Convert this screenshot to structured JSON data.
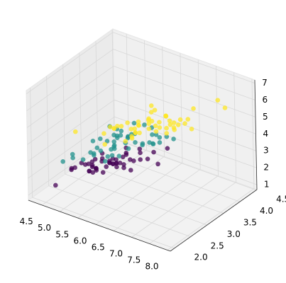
{
  "chart_data": {
    "type": "scatter3d",
    "xlim": [
      4.12,
      8.08
    ],
    "ylim": [
      1.88,
      4.52
    ],
    "zlim": [
      0.705,
      7.195
    ],
    "xticks": [
      {
        "value": 4.5,
        "label": "4.5"
      },
      {
        "value": 5.0,
        "label": "5.0"
      },
      {
        "value": 5.5,
        "label": "5.5"
      },
      {
        "value": 6.0,
        "label": "6.0"
      },
      {
        "value": 6.5,
        "label": "6.5"
      },
      {
        "value": 7.0,
        "label": "7.0"
      },
      {
        "value": 7.5,
        "label": "7.5"
      },
      {
        "value": 8.0,
        "label": "8.0"
      }
    ],
    "yticks": [
      {
        "value": 2.0,
        "label": "2.0"
      },
      {
        "value": 2.5,
        "label": "2.5"
      },
      {
        "value": 3.0,
        "label": "3.0"
      },
      {
        "value": 3.5,
        "label": "3.5"
      },
      {
        "value": 4.0,
        "label": "4.0"
      },
      {
        "value": 4.5,
        "label": "4.5"
      }
    ],
    "zticks": [
      1,
      2,
      3,
      4,
      5,
      6,
      7
    ],
    "grid": true,
    "series": [
      {
        "color": "#440154",
        "x": [
          5.1,
          4.9,
          4.7,
          4.6,
          5.0,
          5.4,
          4.6,
          5.0,
          4.4,
          4.9,
          5.4,
          4.8,
          4.8,
          4.3,
          5.8,
          5.7,
          5.4,
          5.1,
          5.7,
          5.1,
          5.4,
          5.1,
          4.6,
          5.1,
          4.8,
          5.0,
          5.0,
          5.2,
          5.2,
          4.7,
          4.8,
          5.4,
          5.2,
          5.5,
          4.9,
          5.0,
          5.5,
          4.9,
          4.4,
          5.1,
          5.0,
          4.5,
          4.4,
          5.0,
          5.1,
          4.8,
          5.1,
          4.6,
          5.3,
          5.0
        ],
        "y": [
          3.5,
          3.0,
          3.2,
          3.1,
          3.6,
          3.9,
          3.4,
          3.4,
          2.9,
          3.1,
          3.7,
          3.4,
          3.0,
          3.0,
          4.0,
          4.4,
          3.9,
          3.5,
          3.8,
          3.8,
          3.4,
          3.7,
          3.6,
          3.3,
          3.4,
          3.0,
          3.4,
          3.5,
          3.4,
          3.2,
          3.1,
          3.4,
          4.1,
          4.2,
          3.1,
          3.2,
          3.5,
          3.1,
          3.0,
          3.4,
          3.5,
          2.3,
          3.2,
          3.5,
          3.8,
          3.0,
          3.8,
          3.2,
          3.7,
          3.3
        ],
        "z": [
          1.4,
          1.4,
          1.3,
          1.5,
          1.4,
          1.7,
          1.4,
          1.5,
          1.4,
          1.5,
          1.5,
          1.6,
          1.4,
          1.1,
          1.2,
          1.5,
          1.3,
          1.4,
          1.7,
          1.5,
          1.7,
          1.5,
          1.0,
          1.7,
          1.9,
          1.6,
          1.6,
          1.5,
          1.4,
          1.6,
          1.6,
          1.5,
          1.5,
          1.4,
          1.5,
          1.2,
          1.3,
          1.5,
          1.3,
          1.5,
          1.3,
          1.3,
          1.3,
          1.6,
          1.9,
          1.4,
          1.6,
          1.4,
          1.5,
          1.4
        ]
      },
      {
        "color": "#21918c",
        "x": [
          7.0,
          6.4,
          6.9,
          5.5,
          6.5,
          5.7,
          6.3,
          4.9,
          6.6,
          5.2,
          5.0,
          5.9,
          6.0,
          6.1,
          5.6,
          6.7,
          5.6,
          5.8,
          6.2,
          5.6,
          5.9,
          6.1,
          6.3,
          6.1,
          6.4,
          6.6,
          6.8,
          6.7,
          6.0,
          5.7,
          5.5,
          5.5,
          5.8,
          6.0,
          5.4,
          6.0,
          6.7,
          6.3,
          5.6,
          5.5,
          5.5,
          6.1,
          5.8,
          5.0,
          5.6,
          5.7,
          5.7,
          6.2,
          5.1,
          5.7
        ],
        "y": [
          3.2,
          3.2,
          3.1,
          2.3,
          2.8,
          2.8,
          3.3,
          2.4,
          2.9,
          2.7,
          2.0,
          3.0,
          2.2,
          2.9,
          2.9,
          3.1,
          3.0,
          2.7,
          2.2,
          2.5,
          3.2,
          2.8,
          2.5,
          2.8,
          2.9,
          3.0,
          2.8,
          3.0,
          2.9,
          2.6,
          2.4,
          2.4,
          2.7,
          2.7,
          3.0,
          3.4,
          3.1,
          2.3,
          3.0,
          2.5,
          2.6,
          3.0,
          2.6,
          2.3,
          2.7,
          3.0,
          2.9,
          2.9,
          2.5,
          2.8
        ],
        "z": [
          4.7,
          4.5,
          4.9,
          4.0,
          4.6,
          4.5,
          4.7,
          3.3,
          4.6,
          3.9,
          3.5,
          4.2,
          4.0,
          4.7,
          3.6,
          4.4,
          4.5,
          4.1,
          4.5,
          3.9,
          4.8,
          4.0,
          4.9,
          4.7,
          4.3,
          4.4,
          4.8,
          5.0,
          4.5,
          3.5,
          3.8,
          3.7,
          3.9,
          5.1,
          4.5,
          4.5,
          4.7,
          4.4,
          4.1,
          4.0,
          4.4,
          4.6,
          4.0,
          3.3,
          4.2,
          4.2,
          4.2,
          4.3,
          3.0,
          4.1
        ]
      },
      {
        "color": "#fde725",
        "x": [
          6.3,
          5.8,
          7.1,
          6.3,
          6.5,
          7.6,
          4.9,
          7.3,
          6.7,
          7.2,
          6.5,
          6.4,
          6.8,
          5.7,
          5.8,
          6.4,
          6.5,
          7.7,
          7.7,
          6.0,
          6.9,
          5.6,
          7.7,
          6.3,
          6.7,
          7.2,
          6.2,
          6.1,
          6.4,
          7.2,
          7.4,
          7.9,
          6.4,
          6.3,
          6.1,
          7.7,
          6.3,
          6.4,
          6.0,
          6.9,
          6.7,
          6.9,
          5.8,
          6.8,
          6.7,
          6.7,
          6.3,
          6.5,
          6.2,
          5.9
        ],
        "y": [
          3.3,
          2.7,
          3.0,
          2.9,
          3.0,
          3.0,
          2.5,
          2.9,
          2.5,
          3.6,
          3.2,
          2.7,
          3.0,
          2.5,
          2.8,
          3.2,
          3.0,
          3.8,
          2.6,
          2.2,
          3.2,
          2.8,
          2.8,
          2.7,
          3.3,
          3.2,
          2.8,
          3.0,
          2.8,
          3.0,
          2.8,
          3.8,
          2.8,
          2.8,
          2.6,
          3.0,
          3.4,
          3.1,
          3.0,
          3.1,
          3.1,
          3.1,
          2.7,
          3.2,
          3.3,
          3.0,
          2.5,
          3.0,
          3.4,
          3.0
        ],
        "z": [
          6.0,
          5.1,
          5.9,
          5.6,
          5.8,
          6.6,
          4.5,
          6.3,
          5.8,
          6.1,
          5.1,
          5.3,
          5.5,
          5.0,
          5.1,
          5.3,
          5.5,
          6.7,
          6.9,
          5.0,
          5.7,
          4.9,
          6.7,
          4.9,
          5.7,
          6.0,
          4.8,
          4.9,
          5.6,
          5.8,
          6.1,
          6.4,
          5.6,
          5.1,
          5.6,
          6.1,
          5.6,
          5.5,
          4.8,
          5.4,
          5.6,
          5.1,
          5.1,
          5.9,
          5.7,
          5.2,
          5.0,
          5.2,
          5.4,
          5.1
        ]
      }
    ]
  }
}
